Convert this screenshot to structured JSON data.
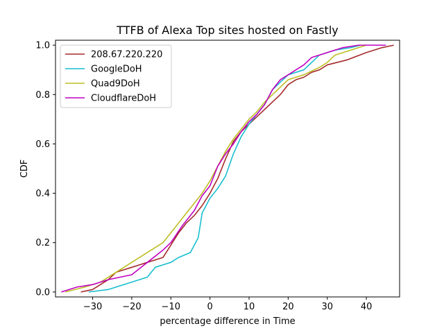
{
  "chart_data": {
    "type": "line",
    "title": "TTFB of Alexa Top sites hosted on Fastly",
    "xlabel": "percentage difference in Time",
    "ylabel": "CDF",
    "xlim": [
      -39.5,
      48.5
    ],
    "ylim": [
      -0.02,
      1.02
    ],
    "xticks": [
      -30,
      -20,
      -10,
      0,
      10,
      20,
      30,
      40
    ],
    "xtick_labels": [
      "−30",
      "−20",
      "−10",
      "0",
      "10",
      "20",
      "30",
      "40"
    ],
    "yticks": [
      0.0,
      0.2,
      0.4,
      0.6,
      0.8,
      1.0
    ],
    "ytick_labels": [
      "0.0",
      "0.2",
      "0.4",
      "0.6",
      "0.8",
      "1.0"
    ],
    "grid": false,
    "legend_position": "top-left",
    "series": [
      {
        "name": "208.67.220.220",
        "color": "#a52a2a",
        "points": [
          [
            -33,
            0.0
          ],
          [
            -30,
            0.01
          ],
          [
            -28,
            0.03
          ],
          [
            -26,
            0.05
          ],
          [
            -24,
            0.08
          ],
          [
            -20,
            0.1
          ],
          [
            -16,
            0.12
          ],
          [
            -12,
            0.14
          ],
          [
            -10,
            0.19
          ],
          [
            -8,
            0.24
          ],
          [
            -6,
            0.28
          ],
          [
            -4,
            0.31
          ],
          [
            -2,
            0.35
          ],
          [
            0,
            0.4
          ],
          [
            2,
            0.46
          ],
          [
            4,
            0.54
          ],
          [
            6,
            0.61
          ],
          [
            8,
            0.65
          ],
          [
            10,
            0.68
          ],
          [
            12,
            0.71
          ],
          [
            14,
            0.74
          ],
          [
            16,
            0.77
          ],
          [
            18,
            0.8
          ],
          [
            20,
            0.84
          ],
          [
            22,
            0.86
          ],
          [
            24,
            0.87
          ],
          [
            26,
            0.89
          ],
          [
            28,
            0.9
          ],
          [
            30,
            0.92
          ],
          [
            35,
            0.94
          ],
          [
            40,
            0.97
          ],
          [
            44,
            0.99
          ],
          [
            47,
            1.0
          ]
        ]
      },
      {
        "name": "GoogleDoH",
        "color": "#17becf",
        "points": [
          [
            -31,
            0.0
          ],
          [
            -26,
            0.01
          ],
          [
            -24,
            0.02
          ],
          [
            -20,
            0.04
          ],
          [
            -16,
            0.06
          ],
          [
            -14,
            0.1
          ],
          [
            -10,
            0.12
          ],
          [
            -8,
            0.14
          ],
          [
            -5,
            0.16
          ],
          [
            -3,
            0.22
          ],
          [
            -2,
            0.32
          ],
          [
            0,
            0.38
          ],
          [
            2,
            0.42
          ],
          [
            4,
            0.47
          ],
          [
            6,
            0.56
          ],
          [
            8,
            0.63
          ],
          [
            10,
            0.68
          ],
          [
            12,
            0.72
          ],
          [
            14,
            0.76
          ],
          [
            16,
            0.82
          ],
          [
            18,
            0.85
          ],
          [
            20,
            0.88
          ],
          [
            24,
            0.9
          ],
          [
            26,
            0.93
          ],
          [
            28,
            0.96
          ],
          [
            32,
            0.98
          ],
          [
            36,
            0.99
          ],
          [
            38.5,
            1.0
          ]
        ]
      },
      {
        "name": "Quad9DoH",
        "color": "#bcbd22",
        "points": [
          [
            -37,
            0.0
          ],
          [
            -32,
            0.02
          ],
          [
            -28,
            0.04
          ],
          [
            -24,
            0.08
          ],
          [
            -20,
            0.12
          ],
          [
            -16,
            0.16
          ],
          [
            -12,
            0.2
          ],
          [
            -9,
            0.26
          ],
          [
            -6,
            0.32
          ],
          [
            -4,
            0.36
          ],
          [
            -2,
            0.4
          ],
          [
            0,
            0.45
          ],
          [
            2,
            0.51
          ],
          [
            4,
            0.57
          ],
          [
            6,
            0.62
          ],
          [
            8,
            0.66
          ],
          [
            10,
            0.7
          ],
          [
            12,
            0.73
          ],
          [
            14,
            0.77
          ],
          [
            16,
            0.8
          ],
          [
            18,
            0.83
          ],
          [
            20,
            0.86
          ],
          [
            24,
            0.88
          ],
          [
            28,
            0.91
          ],
          [
            30,
            0.93
          ],
          [
            32,
            0.96
          ],
          [
            36,
            0.98
          ],
          [
            40,
            1.0
          ]
        ]
      },
      {
        "name": "CloudflareDoH",
        "color": "#bf00bf",
        "points": [
          [
            -38,
            0.0
          ],
          [
            -34,
            0.02
          ],
          [
            -30,
            0.03
          ],
          [
            -26,
            0.05
          ],
          [
            -20,
            0.07
          ],
          [
            -16,
            0.12
          ],
          [
            -12,
            0.17
          ],
          [
            -10,
            0.2
          ],
          [
            -7,
            0.27
          ],
          [
            -4,
            0.33
          ],
          [
            -2,
            0.39
          ],
          [
            0,
            0.43
          ],
          [
            2,
            0.51
          ],
          [
            4,
            0.56
          ],
          [
            6,
            0.6
          ],
          [
            8,
            0.65
          ],
          [
            10,
            0.69
          ],
          [
            12,
            0.72
          ],
          [
            14,
            0.76
          ],
          [
            16,
            0.82
          ],
          [
            18,
            0.86
          ],
          [
            20,
            0.88
          ],
          [
            24,
            0.92
          ],
          [
            26,
            0.95
          ],
          [
            30,
            0.97
          ],
          [
            34,
            0.99
          ],
          [
            38,
            1.0
          ],
          [
            45,
            1.0
          ]
        ]
      }
    ]
  }
}
